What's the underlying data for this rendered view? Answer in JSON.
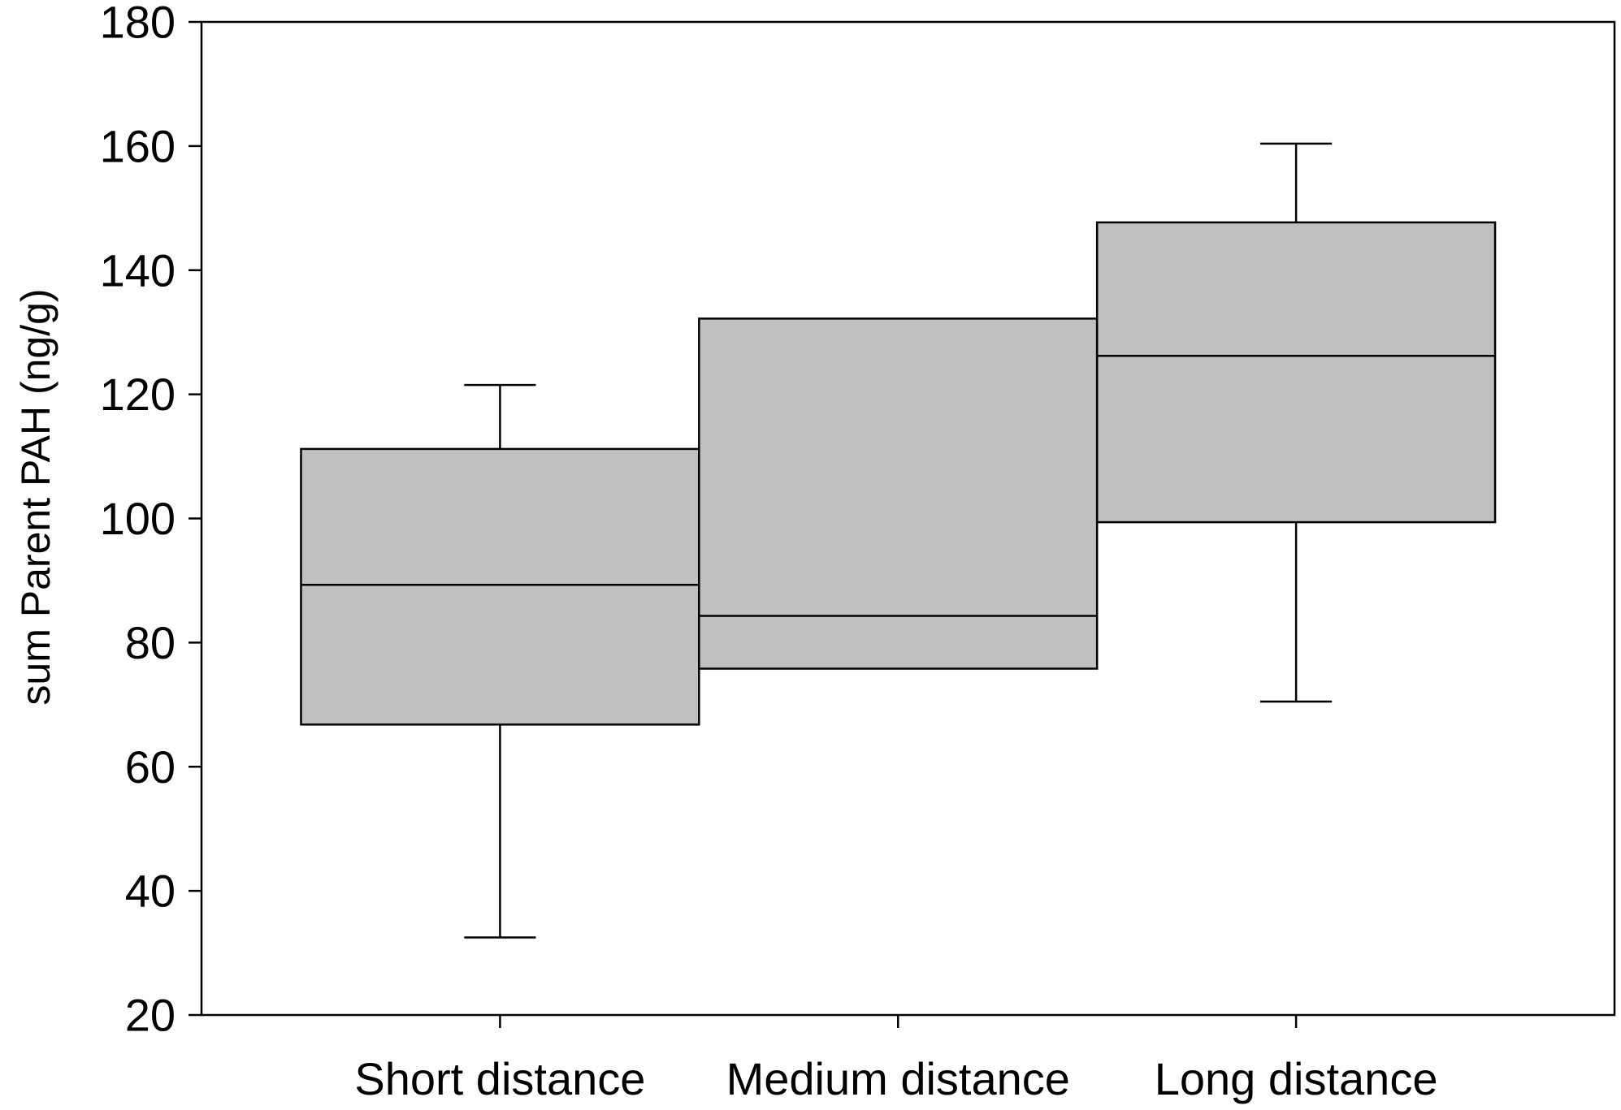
{
  "chart_data": {
    "type": "box",
    "title": "",
    "xlabel": "",
    "ylabel": "sum Parent PAH (ng/g)",
    "ylim": [
      20,
      180
    ],
    "yticks": [
      20,
      40,
      60,
      80,
      100,
      120,
      140,
      160,
      180
    ],
    "grid": false,
    "legend": "none",
    "categories": [
      "Short distance",
      "Medium distance",
      "Long distance"
    ],
    "boxes": [
      {
        "category": "Short distance",
        "whisker_low": 32.5,
        "q1": 66.8,
        "median": 89.3,
        "q3": 111.2,
        "whisker_high": 121.5
      },
      {
        "category": "Medium distance",
        "whisker_low": null,
        "q1": 75.8,
        "median": 84.3,
        "q3": 132.2,
        "whisker_high": null
      },
      {
        "category": "Long distance",
        "whisker_low": 70.5,
        "q1": 99.4,
        "median": 126.2,
        "q3": 147.7,
        "whisker_high": 160.4
      }
    ],
    "colors": {
      "box_fill": "#c0c0c0",
      "stroke": "#000000"
    }
  }
}
